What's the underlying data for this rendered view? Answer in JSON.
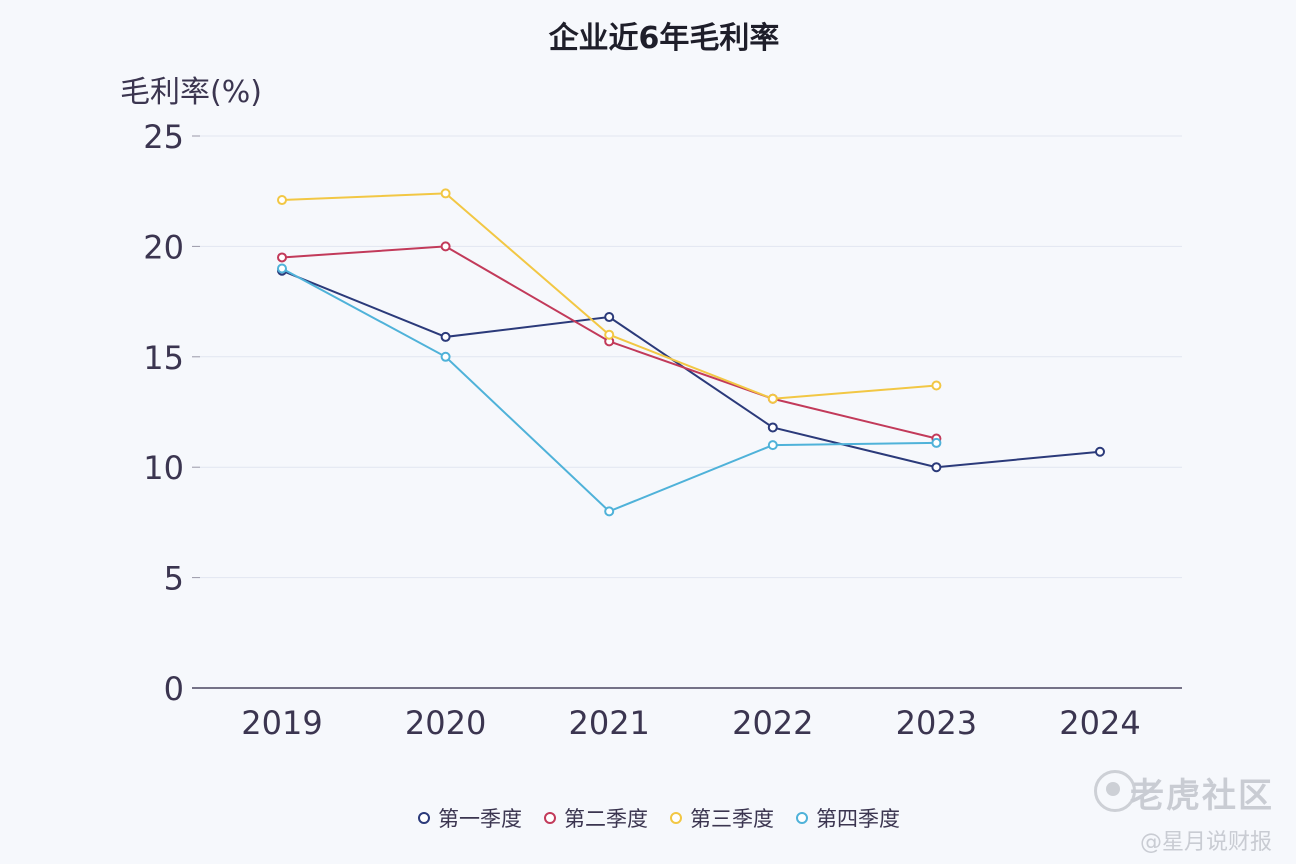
{
  "chart_data": {
    "type": "line",
    "title": "企业近6年毛利率",
    "ylabel": "毛利率(%)",
    "xlabel": "",
    "categories": [
      "2019",
      "2020",
      "2021",
      "2022",
      "2023",
      "2024"
    ],
    "ylim": [
      0,
      25
    ],
    "yticks": [
      0,
      5,
      10,
      15,
      20,
      25
    ],
    "grid": true,
    "legend_position": "bottom",
    "series": [
      {
        "name": "第一季度",
        "color": "#2b3a7a",
        "values": [
          18.9,
          15.9,
          16.8,
          11.8,
          10.0,
          10.7
        ]
      },
      {
        "name": "第二季度",
        "color": "#c23a5a",
        "values": [
          19.5,
          20.0,
          15.7,
          13.1,
          11.3,
          null
        ]
      },
      {
        "name": "第三季度",
        "color": "#f2c744",
        "values": [
          22.1,
          22.4,
          16.0,
          13.1,
          13.7,
          null
        ]
      },
      {
        "name": "第四季度",
        "color": "#4fb2d9",
        "values": [
          19.0,
          15.0,
          8.0,
          11.0,
          11.1,
          null
        ]
      }
    ]
  },
  "watermark": {
    "brand": "老虎社区",
    "author": "@星月说财报"
  }
}
